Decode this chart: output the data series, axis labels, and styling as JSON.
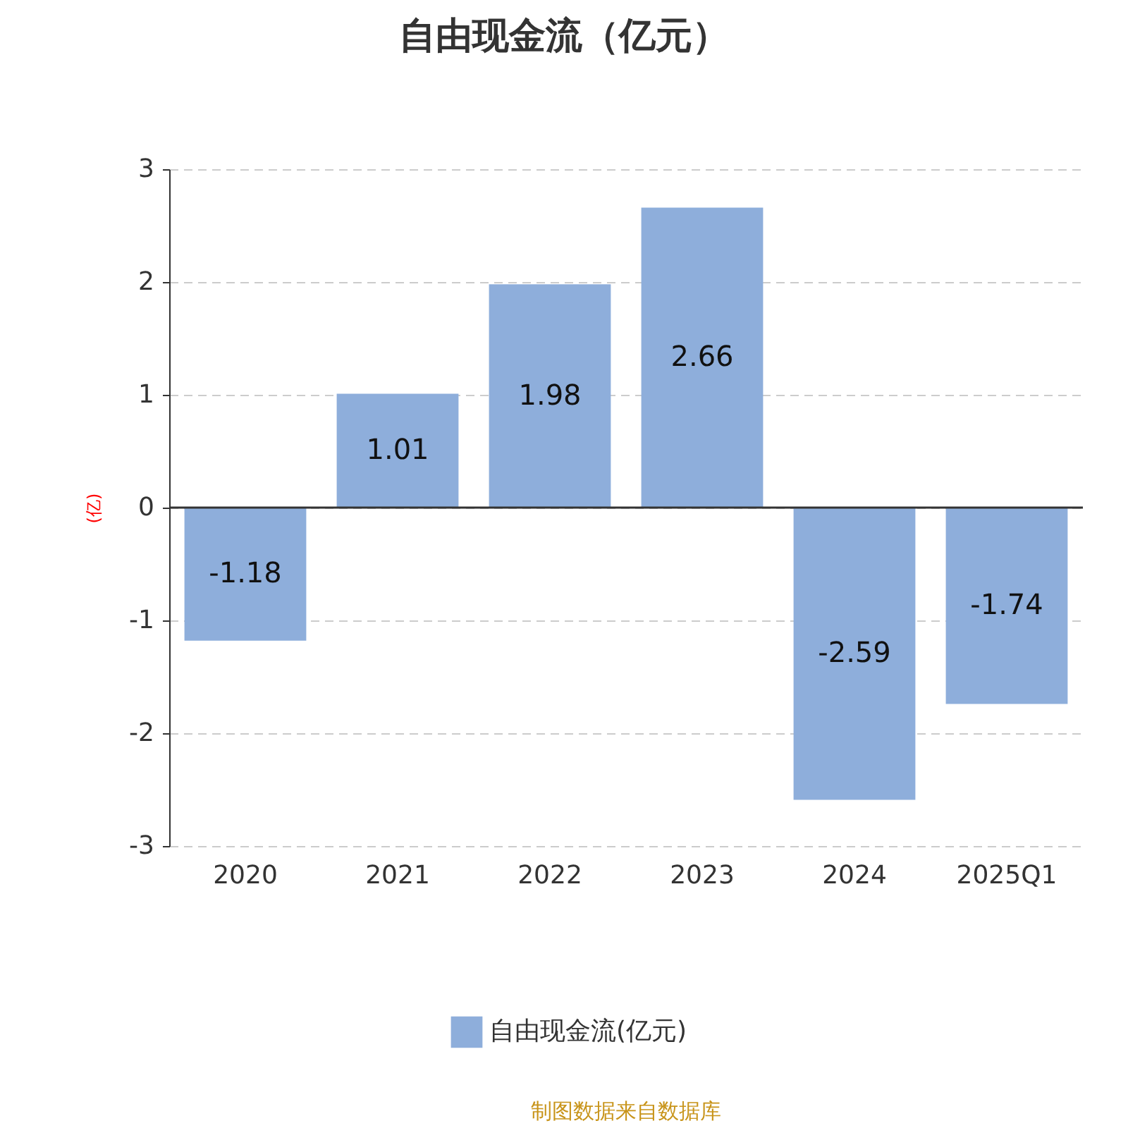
{
  "chart_data": {
    "type": "bar",
    "title": "自由现金流（亿元）",
    "ylabel": "(亿)",
    "categories": [
      "2020",
      "2021",
      "2022",
      "2023",
      "2024",
      "2025Q1"
    ],
    "series": [
      {
        "name": "自由现金流(亿元)",
        "color": "#8eaedb",
        "values": [
          -1.18,
          1.01,
          1.98,
          2.66,
          -2.59,
          -1.74
        ]
      }
    ],
    "ylim": [
      -3,
      3
    ],
    "yticks": [
      -3,
      -2,
      -1,
      0,
      1,
      2,
      3
    ],
    "grid": "y",
    "legend": "bottom",
    "data_labels": true,
    "annotations": [
      "制图数据来自数据库"
    ]
  }
}
